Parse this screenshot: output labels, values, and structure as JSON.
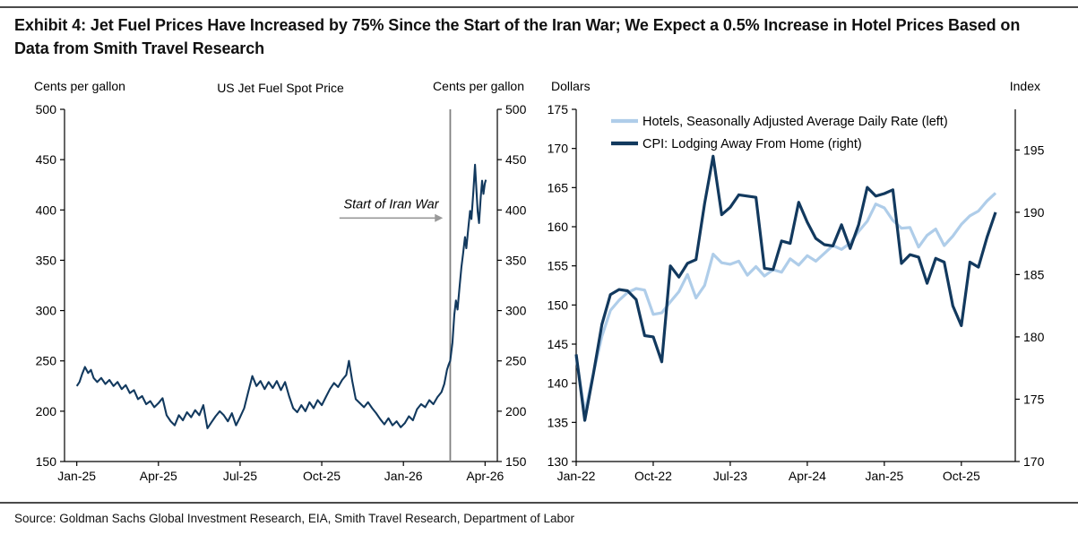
{
  "page": {
    "title": "Exhibit 4: Jet Fuel Prices Have Increased by 75% Since the Start of the Iran War; We Expect a 0.5% Increase in Hotel Prices Based on Data from Smith Travel Research",
    "source": "Source: Goldman Sachs Global Investment Research, EIA, Smith Travel Research, Department of Labor"
  },
  "colors": {
    "navy": "#12395E",
    "light_blue": "#AFCDE9",
    "war_line": "#808080",
    "arrow": "#999999",
    "rule": "#4a4a4a",
    "axis": "#000000"
  },
  "chart_data": [
    {
      "type": "line",
      "title": "US Jet Fuel Spot Price",
      "left_axis_label": "Cents per gallon",
      "right_axis_label": "Cents per gallon",
      "xlabel": "",
      "ylabel": "Cents per gallon",
      "xlim_months": [
        -0.45,
        15.45
      ],
      "ylim": [
        150,
        500
      ],
      "y_ticks": [
        150,
        200,
        250,
        300,
        350,
        400,
        450,
        500
      ],
      "x_tick_labels": [
        "Jan-25",
        "Apr-25",
        "Jul-25",
        "Oct-25",
        "Jan-26",
        "Apr-26"
      ],
      "x_tick_months": [
        0,
        3,
        6,
        9,
        12,
        15
      ],
      "grid": false,
      "annotation": {
        "text": "Start of Iran War",
        "text_month": 11.55,
        "text_value": 401.5,
        "arrow_from_month": 9.65,
        "arrow_to_month": 13.45,
        "arrow_value": 392,
        "war_line_month": 13.72
      },
      "series": [
        {
          "name": "US Jet Fuel Spot Price",
          "color_key": "navy",
          "points": [
            [
              0,
              225
            ],
            [
              0.1,
              229
            ],
            [
              0.2,
              237
            ],
            [
              0.3,
              244
            ],
            [
              0.42,
              238
            ],
            [
              0.52,
              241
            ],
            [
              0.62,
              233
            ],
            [
              0.75,
              229
            ],
            [
              0.9,
              233
            ],
            [
              1.05,
              227
            ],
            [
              1.2,
              231
            ],
            [
              1.35,
              225
            ],
            [
              1.5,
              229
            ],
            [
              1.65,
              222
            ],
            [
              1.8,
              226
            ],
            [
              1.95,
              218
            ],
            [
              2.1,
              221
            ],
            [
              2.25,
              212
            ],
            [
              2.4,
              215
            ],
            [
              2.55,
              207
            ],
            [
              2.7,
              210
            ],
            [
              2.85,
              204
            ],
            [
              3,
              208
            ],
            [
              3.15,
              213
            ],
            [
              3.3,
              196
            ],
            [
              3.45,
              190
            ],
            [
              3.6,
              186
            ],
            [
              3.75,
              196
            ],
            [
              3.9,
              191
            ],
            [
              4.05,
              199
            ],
            [
              4.2,
              194
            ],
            [
              4.35,
              201
            ],
            [
              4.5,
              196
            ],
            [
              4.65,
              206
            ],
            [
              4.8,
              183
            ],
            [
              4.95,
              189
            ],
            [
              5.1,
              195
            ],
            [
              5.25,
              200
            ],
            [
              5.4,
              196
            ],
            [
              5.55,
              190
            ],
            [
              5.7,
              198
            ],
            [
              5.85,
              186
            ],
            [
              6,
              194
            ],
            [
              6.15,
              203
            ],
            [
              6.3,
              219
            ],
            [
              6.45,
              235
            ],
            [
              6.6,
              225
            ],
            [
              6.75,
              230
            ],
            [
              6.9,
              222
            ],
            [
              7.05,
              229
            ],
            [
              7.2,
              223
            ],
            [
              7.35,
              230
            ],
            [
              7.5,
              221
            ],
            [
              7.65,
              229
            ],
            [
              7.8,
              215
            ],
            [
              7.95,
              203
            ],
            [
              8.1,
              199
            ],
            [
              8.25,
              206
            ],
            [
              8.4,
              200
            ],
            [
              8.55,
              209
            ],
            [
              8.7,
              203
            ],
            [
              8.85,
              211
            ],
            [
              9,
              206
            ],
            [
              9.15,
              214
            ],
            [
              9.3,
              222
            ],
            [
              9.45,
              228
            ],
            [
              9.6,
              224
            ],
            [
              9.75,
              231
            ],
            [
              9.9,
              236
            ],
            [
              10,
              250
            ],
            [
              10.12,
              230
            ],
            [
              10.25,
              212
            ],
            [
              10.4,
              208
            ],
            [
              10.55,
              204
            ],
            [
              10.7,
              209
            ],
            [
              10.85,
              203
            ],
            [
              11,
              198
            ],
            [
              11.15,
              192
            ],
            [
              11.3,
              187
            ],
            [
              11.45,
              193
            ],
            [
              11.6,
              186
            ],
            [
              11.75,
              190
            ],
            [
              11.9,
              184
            ],
            [
              12.05,
              188
            ],
            [
              12.2,
              195
            ],
            [
              12.35,
              191
            ],
            [
              12.5,
              202
            ],
            [
              12.65,
              207
            ],
            [
              12.8,
              204
            ],
            [
              12.95,
              211
            ],
            [
              13.1,
              207
            ],
            [
              13.25,
              214
            ],
            [
              13.4,
              219
            ],
            [
              13.5,
              227
            ],
            [
              13.6,
              241
            ],
            [
              13.66,
              246
            ],
            [
              13.72,
              250
            ],
            [
              13.8,
              268
            ],
            [
              13.87,
              296
            ],
            [
              13.93,
              310
            ],
            [
              13.99,
              301
            ],
            [
              14.06,
              323
            ],
            [
              14.13,
              343
            ],
            [
              14.19,
              356
            ],
            [
              14.26,
              373
            ],
            [
              14.31,
              362
            ],
            [
              14.38,
              381
            ],
            [
              14.45,
              399
            ],
            [
              14.5,
              391
            ],
            [
              14.57,
              419
            ],
            [
              14.63,
              445
            ],
            [
              14.68,
              421
            ],
            [
              14.73,
              398
            ],
            [
              14.78,
              387
            ],
            [
              14.84,
              413
            ],
            [
              14.89,
              429
            ],
            [
              14.94,
              416
            ],
            [
              14.99,
              426
            ],
            [
              15.03,
              430
            ]
          ]
        }
      ]
    },
    {
      "type": "line",
      "title": "",
      "left_axis_label": "Dollars",
      "right_axis_label": "Index",
      "xlim_months": [
        0,
        51.3
      ],
      "left_ylim": [
        130,
        175
      ],
      "left_y_ticks": [
        130,
        135,
        140,
        145,
        150,
        155,
        160,
        165,
        170,
        175
      ],
      "right_ylim": [
        170,
        198.26
      ],
      "right_y_ticks": [
        170,
        175,
        180,
        185,
        190,
        195
      ],
      "x_tick_labels": [
        "Jan-22",
        "Oct-22",
        "Jul-23",
        "Apr-24",
        "Jan-25",
        "Oct-25"
      ],
      "x_tick_months": [
        0,
        9,
        18,
        27,
        36,
        45
      ],
      "grid": false,
      "legend_position": "top-left",
      "legend": [
        {
          "label": "Hotels, Seasonally Adjusted Average Daily Rate (left)",
          "color_key": "light_blue"
        },
        {
          "label": "CPI: Lodging Away From Home (right)",
          "color_key": "navy"
        }
      ],
      "x_start_label": "Jan-22",
      "x_step": "1 month",
      "series": [
        {
          "name": "Hotels, Seasonally Adjusted Average Daily Rate (left)",
          "axis": "left",
          "color_key": "light_blue",
          "values": [
            143.4,
            136.2,
            141.2,
            146.0,
            149.3,
            150.6,
            151.6,
            152.1,
            151.9,
            148.8,
            149.0,
            150.4,
            151.7,
            153.9,
            150.9,
            152.5,
            156.5,
            155.4,
            155.2,
            155.6,
            153.8,
            154.9,
            153.7,
            154.5,
            154.2,
            155.9,
            155.1,
            156.3,
            155.6,
            156.6,
            157.6,
            157.1,
            157.9,
            159.4,
            160.7,
            162.9,
            162.4,
            160.8,
            159.8,
            159.9,
            157.4,
            158.9,
            159.7,
            157.6,
            158.8,
            160.3,
            161.4,
            162.0,
            163.3,
            164.3
          ]
        },
        {
          "name": "CPI: Lodging Away From Home (right)",
          "axis": "right",
          "color_key": "navy",
          "values": [
            178.6,
            173.3,
            177.0,
            181.0,
            183.4,
            183.8,
            183.7,
            183.0,
            180.1,
            180.0,
            178.0,
            185.7,
            184.8,
            185.9,
            186.2,
            190.7,
            194.5,
            189.8,
            190.4,
            191.4,
            191.3,
            191.2,
            185.5,
            185.4,
            187.7,
            187.5,
            190.8,
            189.2,
            187.9,
            187.4,
            187.3,
            189.0,
            187.1,
            189.0,
            192.0,
            191.3,
            191.5,
            191.8,
            185.9,
            186.6,
            186.4,
            184.3,
            186.3,
            186.0,
            182.5,
            180.9,
            186.0,
            185.6,
            188.0,
            190.0
          ]
        }
      ]
    }
  ]
}
